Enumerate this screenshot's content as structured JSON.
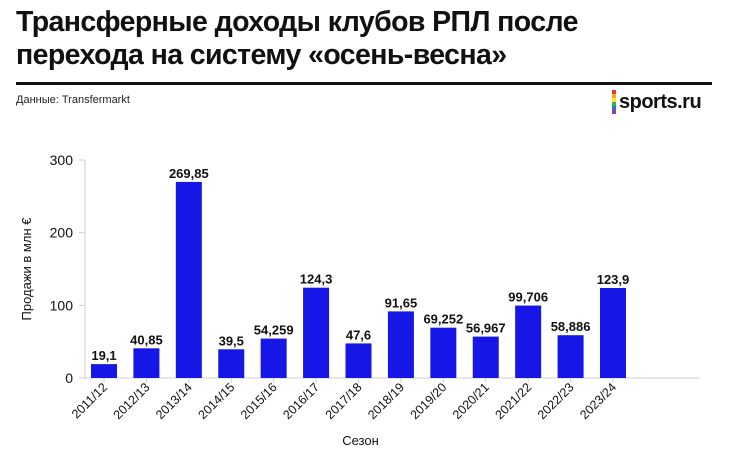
{
  "title_line1": "Трансферные доходы клубов РПЛ после",
  "title_line2": "перехода на систему «осень-весна»",
  "source": "Данные: Transfermarkt",
  "logo": {
    "text": "sports.ru",
    "stripe_colors": [
      "#e63b2e",
      "#f7a823",
      "#f5e52c",
      "#3fae49",
      "#2f6fd6",
      "#8b3fb8"
    ]
  },
  "chart_data": {
    "type": "bar",
    "xlabel": "Сезон",
    "ylabel": "Продажи в млн €",
    "ylim": [
      0,
      300
    ],
    "yticks": [
      0,
      100,
      200,
      300
    ],
    "bar_color": "#1616e6",
    "categories": [
      "2011/12",
      "2012/13",
      "2013/14",
      "2014/15",
      "2015/16",
      "2016/17",
      "2017/18",
      "2018/19",
      "2019/20",
      "2020/21",
      "2021/22",
      "2022/23",
      "2023/24"
    ],
    "values": [
      19.1,
      40.85,
      269.85,
      39.5,
      54.259,
      124.3,
      47.6,
      91.65,
      69.252,
      56.967,
      99.706,
      58.886,
      123.9
    ],
    "labels": [
      "19,1",
      "40,85",
      "269,85",
      "39,5",
      "54,259",
      "124,3",
      "47,6",
      "91,65",
      "69,252",
      "56,967",
      "99,706",
      "58,886",
      "123,9"
    ],
    "grid": false
  }
}
